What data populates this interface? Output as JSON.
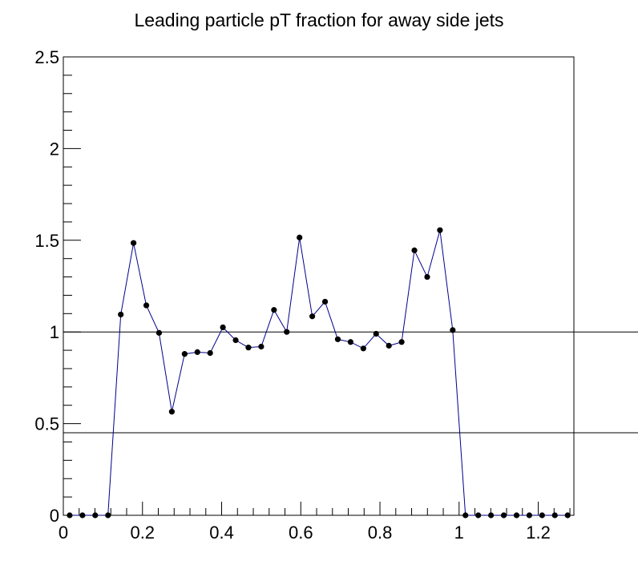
{
  "chart_data": {
    "type": "line",
    "title": "Leading particle pT fraction for away side jets",
    "xlabel": "",
    "ylabel": "",
    "xlim": [
      0,
      1.29
    ],
    "ylim": [
      0,
      2.5
    ],
    "x_ticks": [
      "0",
      "0.2",
      "0.4",
      "0.6",
      "0.8",
      "1",
      "1.2"
    ],
    "y_ticks": [
      "0",
      "0.5",
      "1",
      "1.5",
      "2",
      "2.5"
    ],
    "reference_lines": [
      1.0,
      0.45
    ],
    "grid": false,
    "colors": {
      "line": "#00008b",
      "marker": "#000000",
      "axes": "#000000"
    },
    "series": [
      {
        "x": [
          0.0161,
          0.0484,
          0.0806,
          0.1129,
          0.1452,
          0.1774,
          0.2097,
          0.2419,
          0.2742,
          0.3065,
          0.3387,
          0.371,
          0.4032,
          0.4355,
          0.4677,
          0.5,
          0.5323,
          0.5645,
          0.5968,
          0.629,
          0.6613,
          0.6935,
          0.7258,
          0.7581,
          0.7903,
          0.8226,
          0.8548,
          0.8871,
          0.9194,
          0.9516,
          0.9839,
          1.0161,
          1.0484,
          1.0806,
          1.1129,
          1.1452,
          1.1774,
          1.2097,
          1.2419,
          1.2742
        ],
        "y": [
          0,
          0,
          0,
          0,
          1.095,
          1.485,
          1.145,
          0.995,
          0.565,
          0.88,
          0.89,
          0.885,
          1.025,
          0.955,
          0.915,
          0.92,
          1.12,
          1.0,
          1.515,
          1.085,
          1.165,
          0.96,
          0.945,
          0.91,
          0.99,
          0.925,
          0.945,
          1.445,
          1.3,
          1.555,
          1.01,
          0,
          0,
          0,
          0,
          0,
          0,
          0,
          0,
          0
        ]
      }
    ]
  }
}
